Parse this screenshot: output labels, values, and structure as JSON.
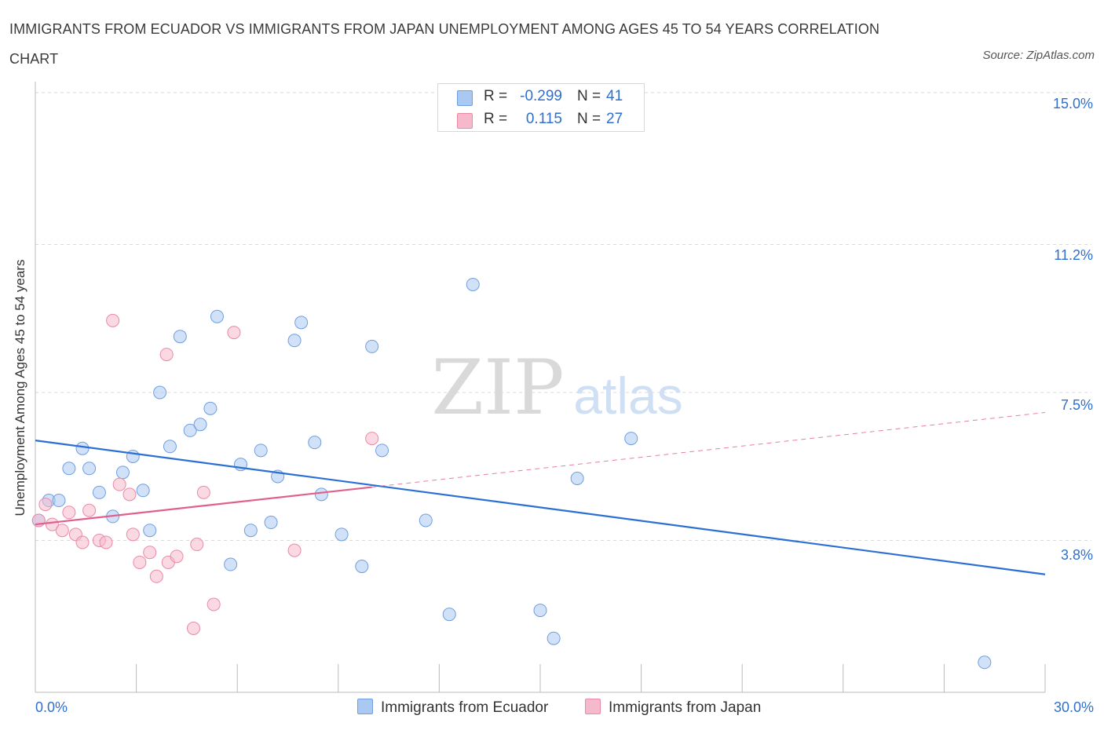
{
  "title": "IMMIGRANTS FROM ECUADOR VS IMMIGRANTS FROM JAPAN UNEMPLOYMENT AMONG AGES 45 TO 54 YEARS CORRELATION CHART",
  "source": "Source: ZipAtlas.com",
  "watermark": {
    "zip": "ZIP",
    "atlas": "atlas"
  },
  "legend": {
    "rows": [
      {
        "r_label": "R =",
        "r_value": "-0.299",
        "n_label": "N =",
        "n_value": "41",
        "color": "#a9c8f2"
      },
      {
        "r_label": "R =",
        "r_value": "0.115",
        "n_label": "N =",
        "n_value": "27",
        "color": "#f6b9cc"
      }
    ]
  },
  "bottom_legend": [
    "Immigrants from Ecuador",
    "Immigrants from Japan"
  ],
  "axis": {
    "ytick_labels": [
      "15.0%",
      "11.2%",
      "7.5%",
      "3.8%"
    ],
    "xtick_labels": [
      "0.0%",
      "30.0%"
    ]
  },
  "chart_data": {
    "type": "scatter",
    "title": "IMMIGRANTS FROM ECUADOR VS IMMIGRANTS FROM JAPAN UNEMPLOYMENT AMONG AGES 45 TO 54 YEARS CORRELATION CHART",
    "xlabel": "",
    "ylabel": "Unemployment Among Ages 45 to 54 years",
    "xlim": [
      0,
      30
    ],
    "ylim": [
      0,
      15
    ],
    "yticks": [
      3.8,
      7.5,
      11.2,
      15.0
    ],
    "grid": true,
    "series": [
      {
        "name": "Immigrants from Ecuador",
        "color": "#a9c8f2",
        "edge": "#6f9fe0",
        "line_color": "#2b6fd4",
        "trend": {
          "x": [
            0,
            30
          ],
          "y": [
            6.3,
            2.95
          ],
          "dashed_after": null
        },
        "points": [
          {
            "x": 0.1,
            "y": 4.3
          },
          {
            "x": 0.4,
            "y": 4.8
          },
          {
            "x": 0.7,
            "y": 4.8
          },
          {
            "x": 1.0,
            "y": 5.6
          },
          {
            "x": 1.4,
            "y": 6.1
          },
          {
            "x": 1.6,
            "y": 5.6
          },
          {
            "x": 1.9,
            "y": 5.0
          },
          {
            "x": 2.3,
            "y": 4.4
          },
          {
            "x": 2.6,
            "y": 5.5
          },
          {
            "x": 2.9,
            "y": 5.9
          },
          {
            "x": 3.2,
            "y": 5.05
          },
          {
            "x": 3.4,
            "y": 4.05
          },
          {
            "x": 3.7,
            "y": 7.5
          },
          {
            "x": 4.0,
            "y": 6.15
          },
          {
            "x": 4.3,
            "y": 8.9
          },
          {
            "x": 4.6,
            "y": 6.55
          },
          {
            "x": 4.9,
            "y": 6.7
          },
          {
            "x": 5.2,
            "y": 7.1
          },
          {
            "x": 5.4,
            "y": 9.4
          },
          {
            "x": 5.8,
            "y": 3.2
          },
          {
            "x": 6.1,
            "y": 5.7
          },
          {
            "x": 6.4,
            "y": 4.05
          },
          {
            "x": 6.7,
            "y": 6.05
          },
          {
            "x": 7.0,
            "y": 4.25
          },
          {
            "x": 7.2,
            "y": 5.4
          },
          {
            "x": 7.7,
            "y": 8.8
          },
          {
            "x": 7.9,
            "y": 9.25
          },
          {
            "x": 8.3,
            "y": 6.25
          },
          {
            "x": 8.5,
            "y": 4.95
          },
          {
            "x": 9.1,
            "y": 3.95
          },
          {
            "x": 9.7,
            "y": 3.15
          },
          {
            "x": 10.0,
            "y": 8.65
          },
          {
            "x": 10.3,
            "y": 6.05
          },
          {
            "x": 11.6,
            "y": 4.3
          },
          {
            "x": 12.3,
            "y": 1.95
          },
          {
            "x": 13.0,
            "y": 10.2
          },
          {
            "x": 15.0,
            "y": 2.05
          },
          {
            "x": 15.4,
            "y": 1.35
          },
          {
            "x": 16.1,
            "y": 5.35
          },
          {
            "x": 17.7,
            "y": 6.35
          },
          {
            "x": 28.2,
            "y": 0.75
          }
        ]
      },
      {
        "name": "Immigrants from Japan",
        "color": "#f6b9cc",
        "edge": "#e98aa8",
        "line_color": "#e0608c",
        "trend": {
          "x": [
            0,
            30
          ],
          "y": [
            4.2,
            7.0
          ],
          "dashed_after": 10.0
        },
        "points": [
          {
            "x": 0.1,
            "y": 4.3
          },
          {
            "x": 0.3,
            "y": 4.7
          },
          {
            "x": 0.5,
            "y": 4.2
          },
          {
            "x": 0.8,
            "y": 4.05
          },
          {
            "x": 1.0,
            "y": 4.5
          },
          {
            "x": 1.2,
            "y": 3.95
          },
          {
            "x": 1.4,
            "y": 3.75
          },
          {
            "x": 1.6,
            "y": 4.55
          },
          {
            "x": 1.9,
            "y": 3.8
          },
          {
            "x": 2.1,
            "y": 3.75
          },
          {
            "x": 2.3,
            "y": 9.3
          },
          {
            "x": 2.5,
            "y": 5.2
          },
          {
            "x": 2.8,
            "y": 4.95
          },
          {
            "x": 2.9,
            "y": 3.95
          },
          {
            "x": 3.1,
            "y": 3.25
          },
          {
            "x": 3.4,
            "y": 3.5
          },
          {
            "x": 3.6,
            "y": 2.9
          },
          {
            "x": 3.9,
            "y": 8.45
          },
          {
            "x": 3.95,
            "y": 3.25
          },
          {
            "x": 4.2,
            "y": 3.4
          },
          {
            "x": 4.7,
            "y": 1.6
          },
          {
            "x": 4.8,
            "y": 3.7
          },
          {
            "x": 5.0,
            "y": 5.0
          },
          {
            "x": 5.3,
            "y": 2.2
          },
          {
            "x": 5.9,
            "y": 9.0
          },
          {
            "x": 7.7,
            "y": 3.55
          },
          {
            "x": 10.0,
            "y": 6.35
          }
        ]
      }
    ]
  }
}
